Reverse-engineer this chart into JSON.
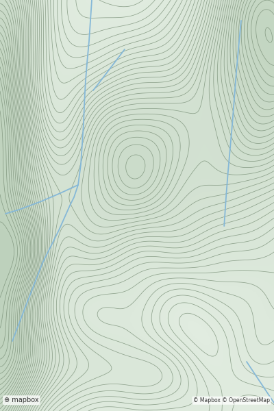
{
  "bg_color": "#e2ece0",
  "contour_color": "#7a9078",
  "stream_color": "#85b8d8",
  "stream_linewidth": 1.3,
  "contour_linewidth": 0.55,
  "figsize": [
    4.0,
    6.0
  ],
  "dpi": 100,
  "n_contours": 40,
  "watermark_left": "⊕ mapbox",
  "watermark_right": "© Mapbox © OpenStreetMap",
  "cmap_low": [
    0.882,
    0.925,
    0.878
  ],
  "cmap_mid": [
    0.82,
    0.878,
    0.815
  ],
  "cmap_high": [
    0.74,
    0.82,
    0.735
  ]
}
